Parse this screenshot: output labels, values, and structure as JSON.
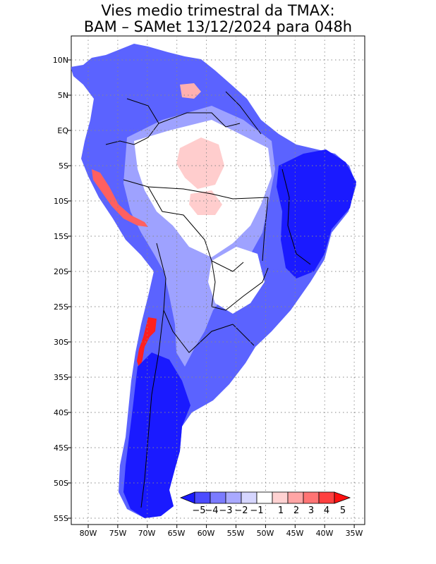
{
  "title": {
    "line1": "Vies medio trimestral da TMAX:",
    "line2": "BAM – SAMet 13/12/2024  para 048h"
  },
  "map": {
    "lat_labels": [
      "10N",
      "5N",
      "EQ",
      "5S",
      "10S",
      "15S",
      "20S",
      "25S",
      "30S",
      "35S",
      "40S",
      "45S",
      "50S",
      "55S"
    ],
    "lon_labels": [
      "80W",
      "75W",
      "70W",
      "65W",
      "60W",
      "55W",
      "50W",
      "45W",
      "40W",
      "35W"
    ],
    "grid": "dotted"
  },
  "colorbar": {
    "labels": [
      "−5",
      "−4",
      "−3",
      "−2",
      "−1",
      "1",
      "2",
      "3",
      "4",
      "5"
    ],
    "colors": [
      "#1a1aff",
      "#4b4bff",
      "#7b7bff",
      "#a9a9ff",
      "#d6d6ff",
      "#ffffff",
      "#ffd2d2",
      "#ffa5a5",
      "#ff7474",
      "#ff4040",
      "#ff1010"
    ]
  }
}
